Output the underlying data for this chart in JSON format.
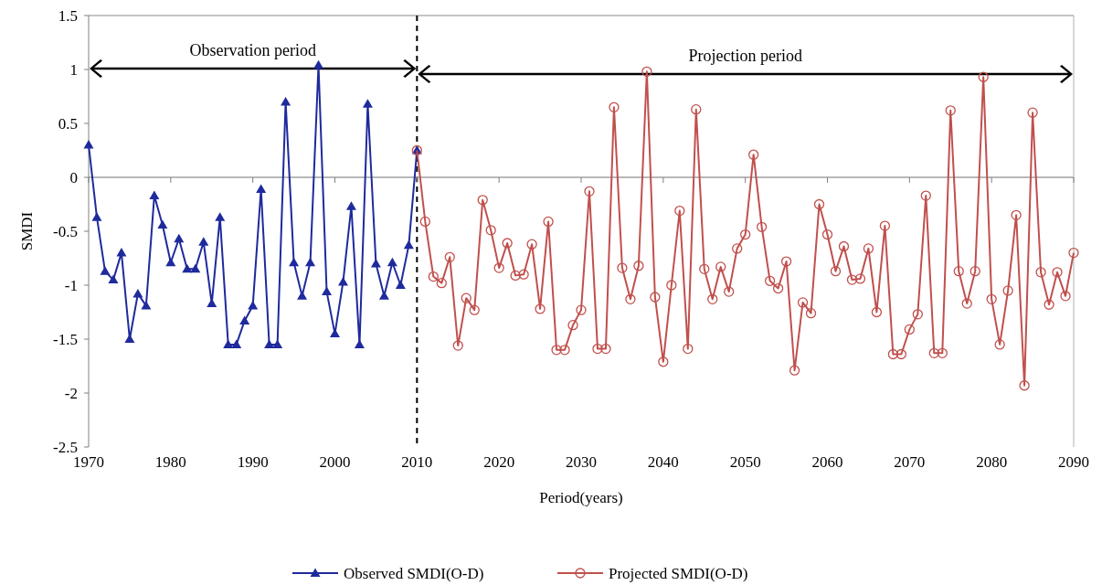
{
  "chart_data": {
    "type": "line",
    "xlabel": "Period(years)",
    "ylabel": "SMDI",
    "xlim": [
      1970,
      2090
    ],
    "xticks": [
      1970,
      1980,
      1990,
      2000,
      2010,
      2020,
      2030,
      2040,
      2050,
      2060,
      2070,
      2080,
      2090
    ],
    "ylim": [
      -2.5,
      1.5
    ],
    "yticks": [
      -2.5,
      -2,
      {
        "value": -1.5,
        "label": "-1.5"
      },
      -1,
      {
        "value": -0.5,
        "label": "-0.5"
      },
      0,
      {
        "value": 0.5,
        "label": "0.5"
      },
      1,
      {
        "value": 1.5,
        "label": "1.5"
      }
    ],
    "grid": false,
    "legend": "bottom",
    "ref_lines": [
      {
        "axis": "x",
        "value": 2010,
        "color": "#000000",
        "line_style": "dashed"
      },
      {
        "axis": "y",
        "value": 0,
        "color": "#a0a0a0",
        "line_style": "solid"
      }
    ],
    "annotations": [
      "Observation period",
      "Projection period"
    ],
    "series": [
      {
        "name": "Observed SMDI(O-D)",
        "color": "#1f2a9c",
        "marker": "triangle",
        "x": [
          1970,
          1971,
          1972,
          1973,
          1974,
          1975,
          1976,
          1977,
          1978,
          1979,
          1980,
          1981,
          1982,
          1983,
          1984,
          1985,
          1986,
          1987,
          1988,
          1989,
          1990,
          1991,
          1992,
          1993,
          1994,
          1995,
          1996,
          1997,
          1998,
          1999,
          2000,
          2001,
          2002,
          2003,
          2004,
          2005,
          2006,
          2007,
          2008,
          2009,
          2010
        ],
        "values": [
          0.3,
          -0.37,
          -0.87,
          -0.95,
          -0.7,
          -1.5,
          -1.08,
          -1.19,
          -0.17,
          -0.44,
          -0.79,
          -0.57,
          -0.85,
          -0.85,
          -0.6,
          -1.17,
          -0.37,
          -1.55,
          -1.55,
          -1.33,
          -1.19,
          -0.11,
          -1.55,
          -1.55,
          0.7,
          -0.79,
          -1.1,
          -0.79,
          1.04,
          -1.06,
          -1.45,
          -0.97,
          -0.27,
          -1.55,
          0.68,
          -0.8,
          -1.1,
          -0.79,
          -1.0,
          -0.63,
          0.25
        ]
      },
      {
        "name": "Projected SMDI(O-D)",
        "color": "#c0504d",
        "marker": "circle",
        "x": [
          2010,
          2011,
          2012,
          2013,
          2014,
          2015,
          2016,
          2017,
          2018,
          2019,
          2020,
          2021,
          2022,
          2023,
          2024,
          2025,
          2026,
          2027,
          2028,
          2029,
          2030,
          2031,
          2032,
          2033,
          2034,
          2035,
          2036,
          2037,
          2038,
          2039,
          2040,
          2041,
          2042,
          2043,
          2044,
          2045,
          2046,
          2047,
          2048,
          2049,
          2050,
          2051,
          2052,
          2053,
          2054,
          2055,
          2056,
          2057,
          2058,
          2059,
          2060,
          2061,
          2062,
          2063,
          2064,
          2065,
          2066,
          2067,
          2068,
          2069,
          2070,
          2071,
          2072,
          2073,
          2074,
          2075,
          2076,
          2077,
          2078,
          2079,
          2080,
          2081,
          2082,
          2083,
          2084,
          2085,
          2086,
          2087,
          2088,
          2089,
          2090
        ],
        "values": [
          0.25,
          -0.41,
          -0.92,
          -0.98,
          -0.74,
          -1.56,
          -1.12,
          -1.23,
          -0.21,
          -0.49,
          -0.84,
          -0.61,
          -0.91,
          -0.9,
          -0.62,
          -1.22,
          -0.41,
          -1.6,
          -1.6,
          -1.37,
          -1.23,
          -0.13,
          -1.59,
          -1.59,
          0.65,
          -0.84,
          -1.13,
          -0.82,
          0.98,
          -1.11,
          -1.71,
          -1.0,
          -0.31,
          -1.59,
          0.63,
          -0.85,
          -1.13,
          -0.83,
          -1.06,
          -0.66,
          -0.53,
          0.21,
          -0.46,
          -0.96,
          -1.03,
          -0.78,
          -1.79,
          -1.16,
          -1.26,
          -0.25,
          -0.53,
          -0.87,
          -0.64,
          -0.95,
          -0.94,
          -0.66,
          -1.25,
          -0.45,
          -1.64,
          -1.64,
          -1.41,
          -1.27,
          -0.17,
          -1.63,
          -1.63,
          0.62,
          -0.87,
          -1.17,
          -0.87,
          0.93,
          -1.13,
          -1.55,
          -1.05,
          -0.35,
          -1.93,
          0.6,
          -0.88,
          -1.18,
          -0.88,
          -1.1,
          -0.7
        ]
      }
    ]
  }
}
